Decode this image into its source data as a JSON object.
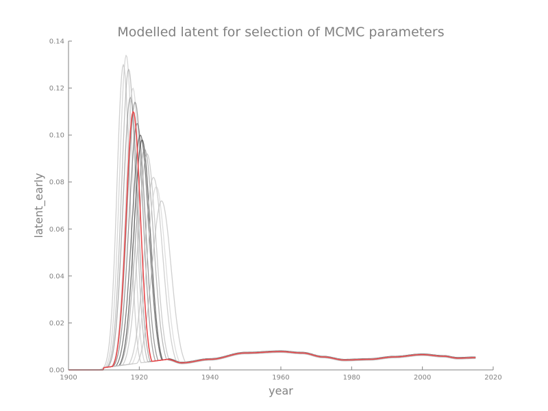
{
  "chart_data": {
    "type": "line",
    "title": "Modelled latent for selection of MCMC parameters",
    "xlabel": "year",
    "ylabel": "latent_early",
    "xlim": [
      1900,
      2020
    ],
    "ylim": [
      0,
      0.14
    ],
    "xticks": [
      1900,
      1920,
      1940,
      1960,
      1980,
      2000,
      2020
    ],
    "yticks": [
      0.0,
      0.02,
      0.04,
      0.06,
      0.08,
      0.1,
      0.12,
      0.14
    ],
    "ytick_labels": [
      "0.00",
      "0.02",
      "0.04",
      "0.06",
      "0.08",
      "0.10",
      "0.12",
      "0.14"
    ],
    "grid": false,
    "legend": "none",
    "series": [
      {
        "peak_year": 1915.5,
        "peak_value": 0.13,
        "width": 1.8,
        "color": "#bbbbbb",
        "opacity": 0.7,
        "tail_shift": 0
      },
      {
        "peak_year": 1916.3,
        "peak_value": 0.134,
        "width": 1.9,
        "color": "#c4c4c4",
        "opacity": 0.7,
        "tail_shift": 0.0003
      },
      {
        "peak_year": 1917.0,
        "peak_value": 0.128,
        "width": 2.0,
        "color": "#999999",
        "opacity": 0.6,
        "tail_shift": -0.0002
      },
      {
        "peak_year": 1917.5,
        "peak_value": 0.116,
        "width": 2.1,
        "color": "#777777",
        "opacity": 0.6,
        "tail_shift": 0.0001
      },
      {
        "peak_year": 1918.2,
        "peak_value": 0.12,
        "width": 2.0,
        "color": "#cccccc",
        "opacity": 0.7,
        "tail_shift": -0.0004
      },
      {
        "peak_year": 1918.8,
        "peak_value": 0.114,
        "width": 2.2,
        "color": "#666666",
        "opacity": 0.6,
        "tail_shift": 0.0002
      },
      {
        "peak_year": 1919.4,
        "peak_value": 0.105,
        "width": 2.3,
        "color": "#555555",
        "opacity": 0.6,
        "tail_shift": 0
      },
      {
        "peak_year": 1920.3,
        "peak_value": 0.1,
        "width": 2.4,
        "color": "#444444",
        "opacity": 0.7,
        "tail_shift": 0.0003
      },
      {
        "peak_year": 1920.8,
        "peak_value": 0.098,
        "width": 2.3,
        "color": "#333333",
        "opacity": 0.7,
        "tail_shift": -0.0001
      },
      {
        "peak_year": 1921.5,
        "peak_value": 0.094,
        "width": 2.5,
        "color": "#888888",
        "opacity": 0.6,
        "tail_shift": 0.0001
      },
      {
        "peak_year": 1922.2,
        "peak_value": 0.092,
        "width": 2.5,
        "color": "#aaaaaa",
        "opacity": 0.6,
        "tail_shift": -0.0003
      },
      {
        "peak_year": 1924.0,
        "peak_value": 0.082,
        "width": 2.6,
        "color": "#bbbbbb",
        "opacity": 0.7,
        "tail_shift": 0.0002
      },
      {
        "peak_year": 1924.8,
        "peak_value": 0.078,
        "width": 2.6,
        "color": "#d0d0d0",
        "opacity": 0.7,
        "tail_shift": 0
      },
      {
        "peak_year": 1926.3,
        "peak_value": 0.072,
        "width": 2.7,
        "color": "#bbbbbb",
        "opacity": 0.7,
        "tail_shift": -0.0002
      },
      {
        "peak_year": 1918.3,
        "peak_value": 0.11,
        "width": 2.0,
        "color": "#e8474a",
        "opacity": 1.0,
        "tail_shift": 0
      }
    ],
    "tail_points": [
      [
        1928,
        0.0045
      ],
      [
        1932,
        0.003
      ],
      [
        1940,
        0.0045
      ],
      [
        1950,
        0.0072
      ],
      [
        1960,
        0.0078
      ],
      [
        1966,
        0.0072
      ],
      [
        1972,
        0.0055
      ],
      [
        1978,
        0.0042
      ],
      [
        1985,
        0.0045
      ],
      [
        1992,
        0.0055
      ],
      [
        2000,
        0.0065
      ],
      [
        2006,
        0.0058
      ],
      [
        2010,
        0.005
      ],
      [
        2015,
        0.0052
      ]
    ]
  }
}
